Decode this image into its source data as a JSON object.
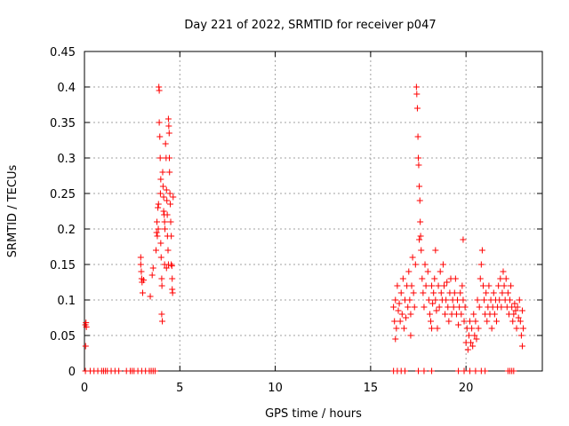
{
  "chart_data": {
    "type": "scatter",
    "title": "Day 221 of 2022, SRMTID for receiver p047",
    "xlabel": "GPS time / hours",
    "ylabel": "SRMTID / TECUs",
    "xlim": [
      0,
      24
    ],
    "ylim": [
      0,
      0.45
    ],
    "xticks": [
      0,
      5,
      10,
      15,
      20
    ],
    "xtick_labels": [
      "0",
      "5",
      "10",
      "15",
      "20"
    ],
    "yticks": [
      0,
      0.05,
      0.1,
      0.15,
      0.2,
      0.25,
      0.3,
      0.35,
      0.4,
      0.45
    ],
    "ytick_labels": [
      "0",
      "0.05",
      "0.1",
      "0.15",
      "0.2",
      "0.25",
      "0.3",
      "0.35",
      "0.4",
      "0.45"
    ],
    "grid": true,
    "marker": "+",
    "series": [
      {
        "name": "SRMTID",
        "color": "#ff0000",
        "points": [
          [
            0.05,
            0.065
          ],
          [
            0.08,
            0.068
          ],
          [
            0.06,
            0.035
          ],
          [
            0.1,
            0.062
          ],
          [
            0.05,
            0
          ],
          [
            0.3,
            0
          ],
          [
            0.5,
            0
          ],
          [
            0.7,
            0
          ],
          [
            0.9,
            0
          ],
          [
            1.0,
            0
          ],
          [
            1.1,
            0
          ],
          [
            1.2,
            0
          ],
          [
            1.4,
            0
          ],
          [
            1.6,
            0
          ],
          [
            1.8,
            0
          ],
          [
            2.2,
            0
          ],
          [
            2.4,
            0
          ],
          [
            2.5,
            0
          ],
          [
            2.6,
            0
          ],
          [
            2.8,
            0
          ],
          [
            3.0,
            0
          ],
          [
            3.2,
            0
          ],
          [
            3.4,
            0
          ],
          [
            3.5,
            0
          ],
          [
            3.6,
            0
          ],
          [
            3.7,
            0
          ],
          [
            2.95,
            0.16
          ],
          [
            2.95,
            0.15
          ],
          [
            2.98,
            0.14
          ],
          [
            3.0,
            0.13
          ],
          [
            3.02,
            0.125
          ],
          [
            3.05,
            0.11
          ],
          [
            3.1,
            0.128
          ],
          [
            3.45,
            0.105
          ],
          [
            3.55,
            0.135
          ],
          [
            3.6,
            0.145
          ],
          [
            3.75,
            0.17
          ],
          [
            3.78,
            0.195
          ],
          [
            3.8,
            0.21
          ],
          [
            3.82,
            0.19
          ],
          [
            3.85,
            0.23
          ],
          [
            3.87,
            0.2
          ],
          [
            3.88,
            0.235
          ],
          [
            3.9,
            0.4
          ],
          [
            3.92,
            0.395
          ],
          [
            3.92,
            0.35
          ],
          [
            3.95,
            0.33
          ],
          [
            3.97,
            0.3
          ],
          [
            3.98,
            0.25
          ],
          [
            4.0,
            0.27
          ],
          [
            4.0,
            0.18
          ],
          [
            4.02,
            0.16
          ],
          [
            4.05,
            0.13
          ],
          [
            4.06,
            0.12
          ],
          [
            4.05,
            0.08
          ],
          [
            4.08,
            0.07
          ],
          [
            4.1,
            0.28
          ],
          [
            4.12,
            0.26
          ],
          [
            4.15,
            0.245
          ],
          [
            4.15,
            0.225
          ],
          [
            4.18,
            0.22
          ],
          [
            4.2,
            0.21
          ],
          [
            4.22,
            0.2
          ],
          [
            4.25,
            0.32
          ],
          [
            4.28,
            0.3
          ],
          [
            4.3,
            0.255
          ],
          [
            4.32,
            0.24
          ],
          [
            4.34,
            0.22
          ],
          [
            4.35,
            0.19
          ],
          [
            4.38,
            0.17
          ],
          [
            4.4,
            0.355
          ],
          [
            4.42,
            0.345
          ],
          [
            4.44,
            0.335
          ],
          [
            4.45,
            0.3
          ],
          [
            4.46,
            0.28
          ],
          [
            4.48,
            0.25
          ],
          [
            4.5,
            0.235
          ],
          [
            4.52,
            0.21
          ],
          [
            4.55,
            0.19
          ],
          [
            4.55,
            0.15
          ],
          [
            4.58,
            0.148
          ],
          [
            4.6,
            0.13
          ],
          [
            4.6,
            0.115
          ],
          [
            4.62,
            0.11
          ],
          [
            4.65,
            0.245
          ],
          [
            4.4,
            0.15
          ],
          [
            4.3,
            0.145
          ],
          [
            4.2,
            0.15
          ],
          [
            16.2,
            0
          ],
          [
            16.4,
            0
          ],
          [
            16.6,
            0
          ],
          [
            16.8,
            0
          ],
          [
            17.5,
            0
          ],
          [
            17.8,
            0
          ],
          [
            18.2,
            0
          ],
          [
            19.6,
            0
          ],
          [
            19.9,
            0
          ],
          [
            20.2,
            0
          ],
          [
            20.5,
            0
          ],
          [
            20.8,
            0
          ],
          [
            21.0,
            0
          ],
          [
            22.2,
            0
          ],
          [
            22.3,
            0
          ],
          [
            22.4,
            0
          ],
          [
            22.5,
            0
          ],
          [
            16.2,
            0.09
          ],
          [
            16.25,
            0.07
          ],
          [
            16.3,
            0.1
          ],
          [
            16.35,
            0.06
          ],
          [
            16.4,
            0.12
          ],
          [
            16.45,
            0.085
          ],
          [
            16.5,
            0.095
          ],
          [
            16.55,
            0.07
          ],
          [
            16.6,
            0.11
          ],
          [
            16.65,
            0.08
          ],
          [
            16.7,
            0.13
          ],
          [
            16.75,
            0.06
          ],
          [
            16.8,
            0.1
          ],
          [
            16.85,
            0.075
          ],
          [
            16.9,
            0.12
          ],
          [
            16.95,
            0.09
          ],
          [
            17.0,
            0.14
          ],
          [
            17.05,
            0.1
          ],
          [
            17.1,
            0.08
          ],
          [
            17.15,
            0.12
          ],
          [
            17.2,
            0.16
          ],
          [
            17.25,
            0.11
          ],
          [
            17.3,
            0.09
          ],
          [
            17.35,
            0.15
          ],
          [
            17.4,
            0.4
          ],
          [
            17.42,
            0.39
          ],
          [
            17.45,
            0.37
          ],
          [
            17.48,
            0.33
          ],
          [
            17.5,
            0.3
          ],
          [
            17.52,
            0.29
          ],
          [
            17.55,
            0.26
          ],
          [
            17.58,
            0.24
          ],
          [
            17.6,
            0.21
          ],
          [
            17.62,
            0.19
          ],
          [
            17.65,
            0.17
          ],
          [
            17.7,
            0.13
          ],
          [
            17.75,
            0.11
          ],
          [
            17.8,
            0.09
          ],
          [
            17.85,
            0.15
          ],
          [
            17.9,
            0.12
          ],
          [
            18.0,
            0.14
          ],
          [
            18.05,
            0.1
          ],
          [
            18.1,
            0.08
          ],
          [
            18.15,
            0.07
          ],
          [
            18.2,
            0.12
          ],
          [
            18.25,
            0.095
          ],
          [
            18.3,
            0.11
          ],
          [
            18.35,
            0.13
          ],
          [
            18.4,
            0.1
          ],
          [
            18.45,
            0.085
          ],
          [
            18.5,
            0.06
          ],
          [
            18.55,
            0.12
          ],
          [
            18.6,
            0.09
          ],
          [
            18.65,
            0.14
          ],
          [
            18.7,
            0.11
          ],
          [
            18.75,
            0.1
          ],
          [
            18.8,
            0.15
          ],
          [
            18.85,
            0.12
          ],
          [
            18.9,
            0.08
          ],
          [
            18.95,
            0.1
          ],
          [
            19.0,
            0.125
          ],
          [
            19.05,
            0.09
          ],
          [
            19.1,
            0.07
          ],
          [
            19.15,
            0.11
          ],
          [
            19.2,
            0.13
          ],
          [
            19.25,
            0.08
          ],
          [
            19.3,
            0.1
          ],
          [
            19.35,
            0.09
          ],
          [
            19.4,
            0.11
          ],
          [
            19.45,
            0.13
          ],
          [
            19.5,
            0.08
          ],
          [
            19.55,
            0.1
          ],
          [
            19.6,
            0.065
          ],
          [
            19.65,
            0.09
          ],
          [
            19.7,
            0.11
          ],
          [
            19.75,
            0.08
          ],
          [
            19.8,
            0.12
          ],
          [
            19.85,
            0.1
          ],
          [
            19.9,
            0.07
          ],
          [
            19.95,
            0.09
          ],
          [
            20.0,
            0.04
          ],
          [
            20.05,
            0.06
          ],
          [
            20.1,
            0.03
          ],
          [
            20.15,
            0.05
          ],
          [
            20.2,
            0.07
          ],
          [
            20.25,
            0.04
          ],
          [
            20.3,
            0.06
          ],
          [
            20.35,
            0.035
          ],
          [
            20.4,
            0.08
          ],
          [
            20.45,
            0.05
          ],
          [
            20.5,
            0.07
          ],
          [
            20.55,
            0.045
          ],
          [
            20.6,
            0.1
          ],
          [
            20.65,
            0.06
          ],
          [
            20.7,
            0.09
          ],
          [
            20.75,
            0.13
          ],
          [
            20.8,
            0.15
          ],
          [
            20.85,
            0.17
          ],
          [
            20.9,
            0.12
          ],
          [
            20.95,
            0.1
          ],
          [
            21.0,
            0.08
          ],
          [
            21.05,
            0.11
          ],
          [
            21.1,
            0.07
          ],
          [
            21.15,
            0.09
          ],
          [
            21.2,
            0.12
          ],
          [
            21.25,
            0.08
          ],
          [
            21.3,
            0.1
          ],
          [
            21.35,
            0.06
          ],
          [
            21.4,
            0.09
          ],
          [
            21.45,
            0.11
          ],
          [
            21.5,
            0.08
          ],
          [
            21.55,
            0.1
          ],
          [
            21.6,
            0.07
          ],
          [
            21.65,
            0.09
          ],
          [
            21.7,
            0.12
          ],
          [
            21.75,
            0.1
          ],
          [
            21.8,
            0.13
          ],
          [
            21.85,
            0.09
          ],
          [
            21.9,
            0.11
          ],
          [
            21.95,
            0.14
          ],
          [
            22.0,
            0.12
          ],
          [
            22.05,
            0.1
          ],
          [
            22.1,
            0.13
          ],
          [
            22.15,
            0.09
          ],
          [
            22.2,
            0.11
          ],
          [
            22.25,
            0.08
          ],
          [
            22.3,
            0.1
          ],
          [
            22.35,
            0.12
          ],
          [
            22.4,
            0.09
          ],
          [
            22.45,
            0.07
          ],
          [
            22.5,
            0.08
          ],
          [
            22.55,
            0.095
          ],
          [
            22.6,
            0.085
          ],
          [
            22.65,
            0.06
          ],
          [
            22.7,
            0.09
          ],
          [
            22.75,
            0.075
          ],
          [
            22.8,
            0.1
          ],
          [
            22.85,
            0.07
          ],
          [
            22.9,
            0.05
          ],
          [
            22.95,
            0.085
          ],
          [
            23.0,
            0.06
          ],
          [
            22.95,
            0.035
          ],
          [
            19.85,
            0.185
          ],
          [
            17.55,
            0.185
          ],
          [
            18.4,
            0.17
          ],
          [
            18.2,
            0.06
          ],
          [
            17.1,
            0.05
          ],
          [
            16.3,
            0.045
          ]
        ]
      }
    ]
  }
}
